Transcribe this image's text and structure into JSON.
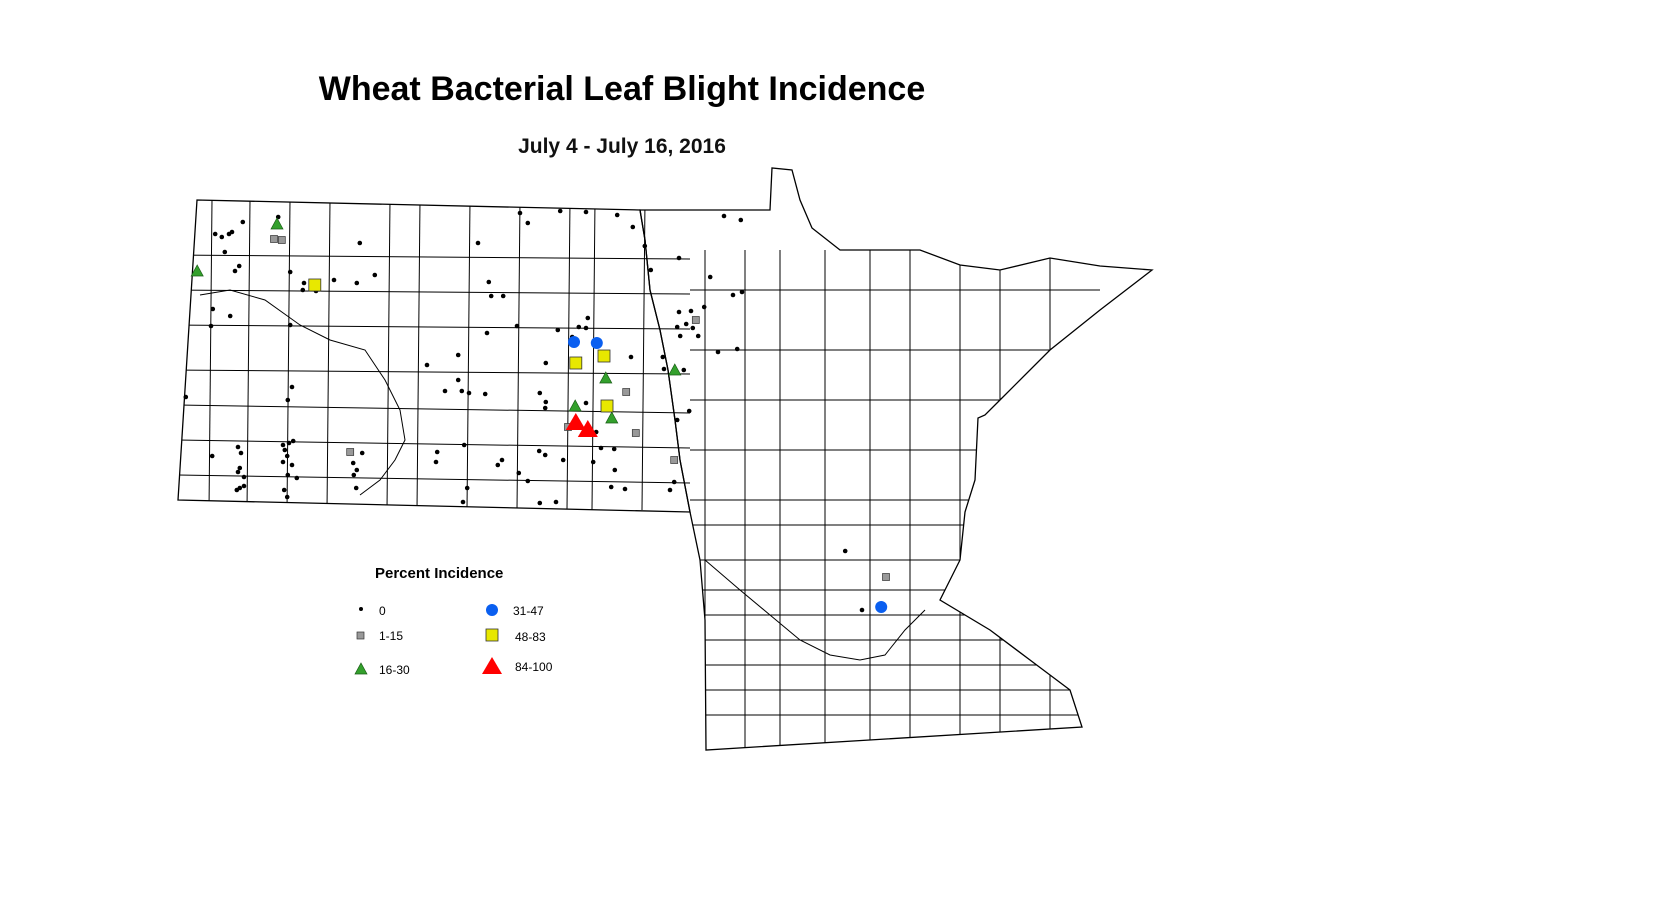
{
  "title": "Wheat Bacterial Leaf Blight Incidence",
  "subtitle": "July 4 - July 16, 2016",
  "legend": {
    "title": "Percent Incidence",
    "classes": [
      {
        "key": "c0",
        "label": "0",
        "symbol": "small-dot",
        "color": "#000000"
      },
      {
        "key": "c1",
        "label": "1-15",
        "symbol": "small-square",
        "color": "#999999"
      },
      {
        "key": "c2",
        "label": "16-30",
        "symbol": "triangle",
        "color": "#33a02c"
      },
      {
        "key": "c3",
        "label": "31-47",
        "symbol": "circle",
        "color": "#0a5ff0"
      },
      {
        "key": "c4",
        "label": "48-83",
        "symbol": "square",
        "color": "#e8e800"
      },
      {
        "key": "c5",
        "label": "84-100",
        "symbol": "large-triangle",
        "color": "#ff0000"
      }
    ]
  },
  "map_data": {
    "regions": [
      "North Dakota",
      "Minnesota"
    ],
    "boundaries": "counties",
    "sites": {
      "c0": [
        [
          -103.12,
          48.83
        ],
        [
          -103.58,
          48.71
        ],
        [
          -103.47,
          48.68
        ],
        [
          -103.35,
          48.71
        ],
        [
          -103.3,
          48.73
        ],
        [
          -102.53,
          48.88
        ],
        [
          -103.42,
          48.53
        ],
        [
          -103.18,
          48.39
        ],
        [
          -103.25,
          48.34
        ],
        [
          -102.33,
          48.33
        ],
        [
          -102.1,
          48.22
        ],
        [
          -102.12,
          48.15
        ],
        [
          -101.9,
          48.14
        ],
        [
          -101.6,
          48.25
        ],
        [
          -101.17,
          48.62
        ],
        [
          -100.92,
          48.3
        ],
        [
          -101.22,
          48.22
        ],
        [
          -103.62,
          47.96
        ],
        [
          -103.33,
          47.89
        ],
        [
          -103.65,
          47.79
        ],
        [
          -102.33,
          47.8
        ],
        [
          -104.07,
          47.08
        ],
        [
          -102.3,
          47.18
        ],
        [
          -102.37,
          47.05
        ],
        [
          -103.63,
          46.49
        ],
        [
          -103.2,
          46.58
        ],
        [
          -103.15,
          46.52
        ],
        [
          -103.17,
          46.37
        ],
        [
          -103.2,
          46.33
        ],
        [
          -103.1,
          46.28
        ],
        [
          -102.45,
          46.6
        ],
        [
          -102.35,
          46.62
        ],
        [
          -102.28,
          46.64
        ],
        [
          -102.42,
          46.55
        ],
        [
          -102.38,
          46.49
        ],
        [
          -102.45,
          46.43
        ],
        [
          -102.3,
          46.4
        ],
        [
          -102.37,
          46.3
        ],
        [
          -102.22,
          46.27
        ],
        [
          -102.43,
          46.15
        ],
        [
          -102.38,
          46.08
        ],
        [
          -103.17,
          46.17
        ],
        [
          -103.22,
          46.15
        ],
        [
          -103.1,
          46.19
        ],
        [
          -101.28,
          46.42
        ],
        [
          -101.22,
          46.35
        ],
        [
          -101.27,
          46.3
        ],
        [
          -101.13,
          46.52
        ],
        [
          -101.23,
          46.17
        ],
        [
          -99.2,
          48.62
        ],
        [
          -98.5,
          48.92
        ],
        [
          -98.37,
          48.82
        ],
        [
          -97.83,
          48.94
        ],
        [
          -97.4,
          48.93
        ],
        [
          -96.88,
          48.9
        ],
        [
          -96.62,
          48.78
        ],
        [
          -96.42,
          48.59
        ],
        [
          -96.32,
          48.35
        ],
        [
          -95.85,
          48.47
        ],
        [
          -95.1,
          48.89
        ],
        [
          -94.82,
          48.85
        ],
        [
          -95.33,
          48.28
        ],
        [
          -94.8,
          48.13
        ],
        [
          -94.95,
          48.1
        ],
        [
          -95.43,
          47.98
        ],
        [
          -95.85,
          47.93
        ],
        [
          -95.65,
          47.94
        ],
        [
          -95.73,
          47.81
        ],
        [
          -95.88,
          47.78
        ],
        [
          -95.62,
          47.77
        ],
        [
          -95.83,
          47.69
        ],
        [
          -95.53,
          47.69
        ],
        [
          -95.2,
          47.53
        ],
        [
          -94.88,
          47.56
        ],
        [
          -96.12,
          47.48
        ],
        [
          -96.1,
          47.36
        ],
        [
          -95.77,
          47.35
        ],
        [
          -95.68,
          46.94
        ],
        [
          -95.88,
          46.85
        ],
        [
          -95.93,
          46.23
        ],
        [
          -96.0,
          46.15
        ],
        [
          -99.02,
          48.23
        ],
        [
          -98.98,
          48.09
        ],
        [
          -98.78,
          48.09
        ],
        [
          -99.05,
          47.72
        ],
        [
          -98.55,
          47.79
        ],
        [
          -99.53,
          47.5
        ],
        [
          -100.05,
          47.4
        ],
        [
          -99.75,
          47.14
        ],
        [
          -99.53,
          47.25
        ],
        [
          -99.47,
          47.14
        ],
        [
          -99.35,
          47.12
        ],
        [
          -99.08,
          47.11
        ],
        [
          -99.43,
          46.6
        ],
        [
          -99.88,
          46.53
        ],
        [
          -99.9,
          46.43
        ],
        [
          -99.38,
          46.17
        ],
        [
          -99.45,
          46.03
        ],
        [
          -98.07,
          47.42
        ],
        [
          -98.17,
          47.12
        ],
        [
          -98.07,
          47.03
        ],
        [
          -98.08,
          46.97
        ],
        [
          -97.87,
          47.75
        ],
        [
          -97.63,
          47.68
        ],
        [
          -97.52,
          47.78
        ],
        [
          -97.4,
          47.77
        ],
        [
          -97.37,
          47.87
        ],
        [
          -97.4,
          47.02
        ],
        [
          -97.23,
          46.73
        ],
        [
          -97.15,
          46.57
        ],
        [
          -97.28,
          46.43
        ],
        [
          -96.93,
          46.56
        ],
        [
          -96.92,
          46.35
        ],
        [
          -96.65,
          47.48
        ],
        [
          -98.87,
          46.4
        ],
        [
          -98.52,
          46.32
        ],
        [
          -98.8,
          46.45
        ],
        [
          -98.18,
          46.54
        ],
        [
          -98.08,
          46.5
        ],
        [
          -98.37,
          46.24
        ],
        [
          -98.17,
          46.02
        ],
        [
          -97.9,
          46.03
        ],
        [
          -97.78,
          46.45
        ],
        [
          -96.98,
          46.18
        ],
        [
          -96.75,
          46.16
        ],
        [
          -93.08,
          45.54
        ],
        [
          -92.8,
          44.95
        ]
      ],
      "c1": [
        [
          -102.6,
          48.66
        ],
        [
          -102.47,
          48.65
        ],
        [
          -95.57,
          47.85
        ],
        [
          -96.73,
          47.13
        ],
        [
          -96.57,
          46.72
        ],
        [
          -95.93,
          46.45
        ],
        [
          -101.33,
          46.53
        ],
        [
          -97.7,
          46.78
        ],
        [
          -92.4,
          45.28
        ]
      ],
      "c2": [
        [
          -102.55,
          48.81
        ],
        [
          -103.88,
          48.34
        ],
        [
          -95.92,
          47.35
        ],
        [
          -97.07,
          47.27
        ],
        [
          -97.58,
          46.99
        ],
        [
          -96.97,
          46.87
        ]
      ],
      "c3": [
        [
          -97.6,
          47.63
        ],
        [
          -97.22,
          47.62
        ],
        [
          -92.48,
          44.98
        ]
      ],
      "c4": [
        [
          -101.92,
          48.2
        ],
        [
          -97.57,
          47.42
        ],
        [
          -97.1,
          47.49
        ],
        [
          -97.05,
          46.99
        ]
      ],
      "c5": [
        [
          -97.57,
          46.83
        ],
        [
          -97.37,
          46.76
        ]
      ]
    }
  }
}
